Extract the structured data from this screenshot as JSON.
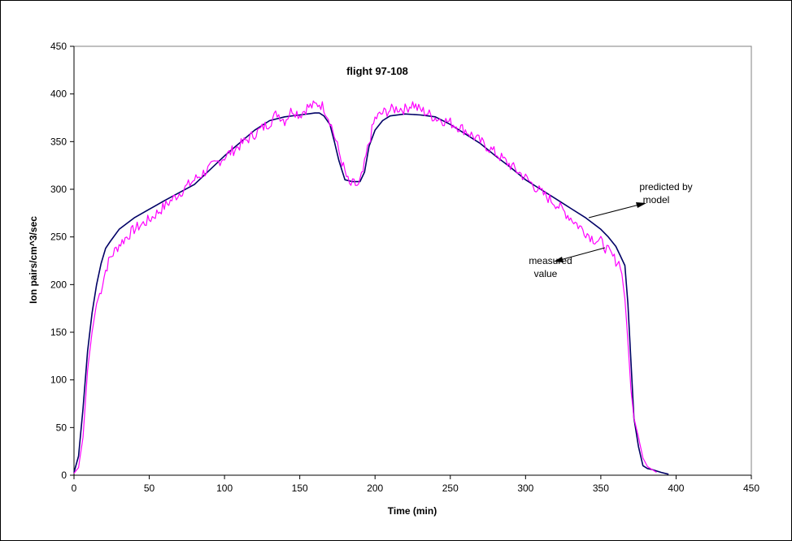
{
  "chart_data": {
    "type": "line",
    "title": "flight 97-108",
    "xlabel": "Time (min)",
    "ylabel": "Ion pairs/cm^3/sec",
    "xlim": [
      0,
      450
    ],
    "ylim": [
      0,
      450
    ],
    "x_ticks": [
      0,
      50,
      100,
      150,
      200,
      250,
      300,
      350,
      400,
      450
    ],
    "y_ticks": [
      0,
      50,
      100,
      150,
      200,
      250,
      300,
      350,
      400,
      450
    ],
    "grid": false,
    "legend": "none",
    "series": [
      {
        "key": "model",
        "color": "#000066",
        "x": [
          0,
          3,
          6,
          9,
          12,
          15,
          18,
          21,
          24,
          30,
          40,
          50,
          60,
          80,
          100,
          120,
          130,
          140,
          150,
          160,
          163,
          166,
          170,
          173,
          176,
          180,
          185,
          190,
          193,
          196,
          200,
          205,
          210,
          220,
          230,
          240,
          250,
          260,
          270,
          280,
          290,
          300,
          310,
          320,
          330,
          340,
          350,
          355,
          360,
          363,
          366,
          368,
          370,
          372,
          375,
          378,
          381,
          384,
          390,
          395
        ],
        "y": [
          3,
          20,
          70,
          130,
          170,
          200,
          222,
          238,
          245,
          258,
          270,
          279,
          288,
          305,
          335,
          362,
          372,
          376,
          378,
          380,
          380,
          377,
          368,
          350,
          330,
          310,
          308,
          308,
          318,
          345,
          362,
          372,
          377,
          379,
          378,
          376,
          368,
          358,
          348,
          335,
          323,
          310,
          300,
          290,
          280,
          270,
          258,
          250,
          240,
          230,
          220,
          180,
          120,
          60,
          30,
          10,
          7,
          6,
          3,
          1
        ]
      },
      {
        "key": "measured",
        "color": "#ff00ff",
        "x": [
          0,
          3,
          6,
          9,
          12,
          15,
          18,
          21,
          24,
          30,
          40,
          50,
          60,
          80,
          100,
          120,
          130,
          135,
          140,
          145,
          150,
          155,
          160,
          163,
          166,
          170,
          175,
          180,
          183,
          186,
          189,
          192,
          195,
          198,
          200,
          205,
          210,
          215,
          220,
          225,
          228,
          232,
          240,
          250,
          260,
          270,
          280,
          290,
          300,
          310,
          320,
          330,
          335,
          340,
          345,
          350,
          355,
          360,
          363,
          366,
          368,
          370,
          372,
          375,
          378,
          381,
          384,
          387
        ],
        "y": [
          2,
          8,
          40,
          110,
          150,
          180,
          195,
          215,
          228,
          242,
          258,
          268,
          282,
          310,
          334,
          358,
          370,
          380,
          372,
          384,
          378,
          386,
          388,
          390,
          386,
          372,
          345,
          318,
          304,
          306,
          303,
          318,
          342,
          362,
          374,
          380,
          383,
          385,
          384,
          390,
          385,
          382,
          375,
          370,
          362,
          350,
          338,
          325,
          312,
          297,
          285,
          270,
          262,
          255,
          248,
          245,
          235,
          225,
          222,
          185,
          140,
          90,
          60,
          40,
          18,
          9,
          6,
          3
        ]
      }
    ],
    "annotations": [
      {
        "lines": [
          "predicted by",
          "model"
        ]
      },
      {
        "lines": [
          "measured",
          "value"
        ]
      }
    ]
  }
}
